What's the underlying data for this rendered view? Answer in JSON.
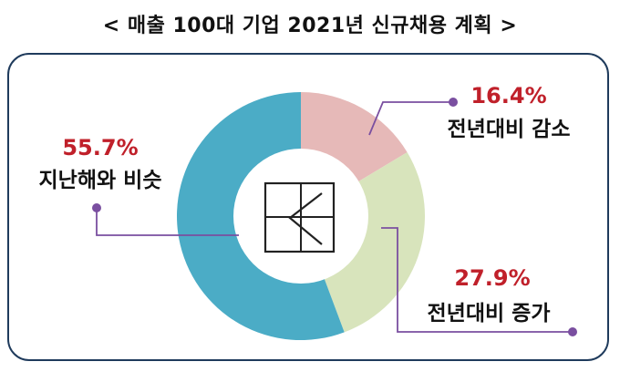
{
  "header": {
    "title": "< 매출 100대 기업 2021년 신규채용 계획 >"
  },
  "colors": {
    "accent": "#c0202a",
    "leader": "#7a4fa0",
    "frame": "#1f3b5c"
  },
  "chart_data": {
    "type": "pie",
    "donut": true,
    "title": "< 매출 100대 기업 2021년 신규채용 계획 >",
    "unit": "%",
    "categories": [
      "전년대비 감소",
      "전년대비 증가",
      "지난해와 비슷"
    ],
    "values": [
      16.4,
      27.9,
      55.7
    ],
    "value_labels": [
      "16.4%",
      "27.9%",
      "55.7%"
    ],
    "colors": [
      "#e6b9b8",
      "#d8e4bc",
      "#4bacc6"
    ],
    "legend": "none"
  },
  "center_logo": "kera-logo-icon"
}
